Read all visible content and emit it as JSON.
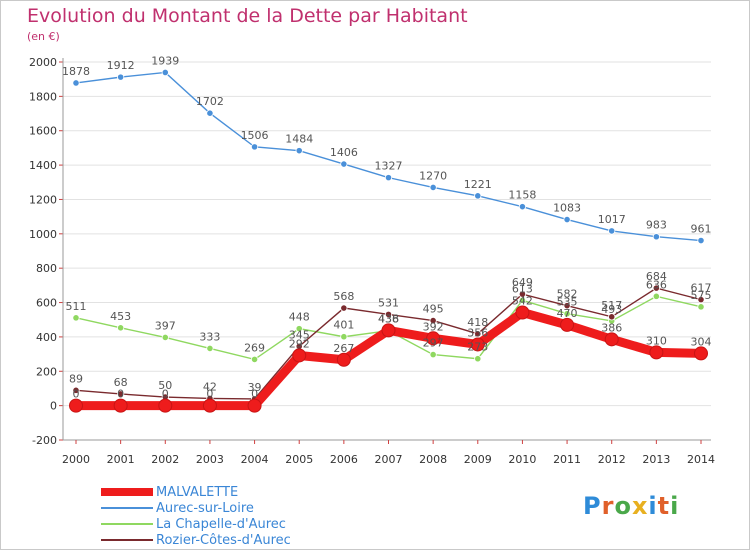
{
  "title": "Evolution du Montant de la Dette par Habitant",
  "unit": "(en €)",
  "logo": {
    "text": "Proxiti",
    "letter_colors": [
      "#2e8bd8",
      "#e0602a",
      "#4aa84a",
      "#e8b020",
      "#2e8bd8",
      "#e0602a",
      "#4aa84a"
    ]
  },
  "chart_data": {
    "type": "line",
    "x": [
      "2000",
      "2001",
      "2002",
      "2003",
      "2004",
      "2005",
      "2006",
      "2007",
      "2008",
      "2009",
      "2010",
      "2011",
      "2012",
      "2013",
      "2014"
    ],
    "ylim": [
      -200,
      2000
    ],
    "yticks": [
      "2000",
      "1800",
      "1600",
      "1400",
      "1200",
      "1000",
      "800",
      "600",
      "400",
      "200",
      "0",
      "-200"
    ],
    "grid": true,
    "legend_position": "bottom-left",
    "series": [
      {
        "name": "MALVALETTE",
        "color": "#ee1c1c",
        "thick": true,
        "values": [
          0,
          0,
          0,
          0,
          0,
          292,
          267,
          438,
          392,
          356,
          542,
          470,
          386,
          310,
          304
        ],
        "labels": [
          "0",
          "0",
          "0",
          "0",
          "0",
          "292",
          "267",
          "438",
          "392",
          "356",
          "542",
          "470",
          "386",
          "310",
          "304"
        ]
      },
      {
        "name": "Aurec-sur-Loire",
        "color": "#4a90d9",
        "thick": false,
        "values": [
          1878,
          1912,
          1939,
          1702,
          1506,
          1484,
          1406,
          1327,
          1270,
          1221,
          1158,
          1083,
          1017,
          983,
          961
        ],
        "labels": [
          "1878",
          "1912",
          "1939",
          "1702",
          "1506",
          "1484",
          "1406",
          "1327",
          "1270",
          "1221",
          "1158",
          "1083",
          "1017",
          "983",
          "961"
        ]
      },
      {
        "name": "La Chapelle-d'Aurec",
        "color": "#8fd860",
        "thick": false,
        "values": [
          511,
          453,
          397,
          333,
          269,
          448,
          401,
          436,
          297,
          273,
          613,
          535,
          493,
          636,
          575
        ],
        "labels": [
          "511",
          "453",
          "397",
          "333",
          "269",
          "448",
          "401",
          "436",
          "297",
          "273",
          "613",
          "535",
          "493",
          "636",
          "575"
        ]
      },
      {
        "name": "Rozier-Côtes-d'Aurec",
        "color": "#7a2a2e",
        "thick": false,
        "values": [
          89,
          68,
          50,
          42,
          39,
          345,
          568,
          531,
          495,
          418,
          649,
          582,
          517,
          684,
          617
        ],
        "labels": [
          "89",
          "68",
          "50",
          "42",
          "39",
          "345",
          "568",
          "531",
          "495",
          "418",
          "649",
          "582",
          "517",
          "684",
          "617"
        ]
      }
    ]
  }
}
